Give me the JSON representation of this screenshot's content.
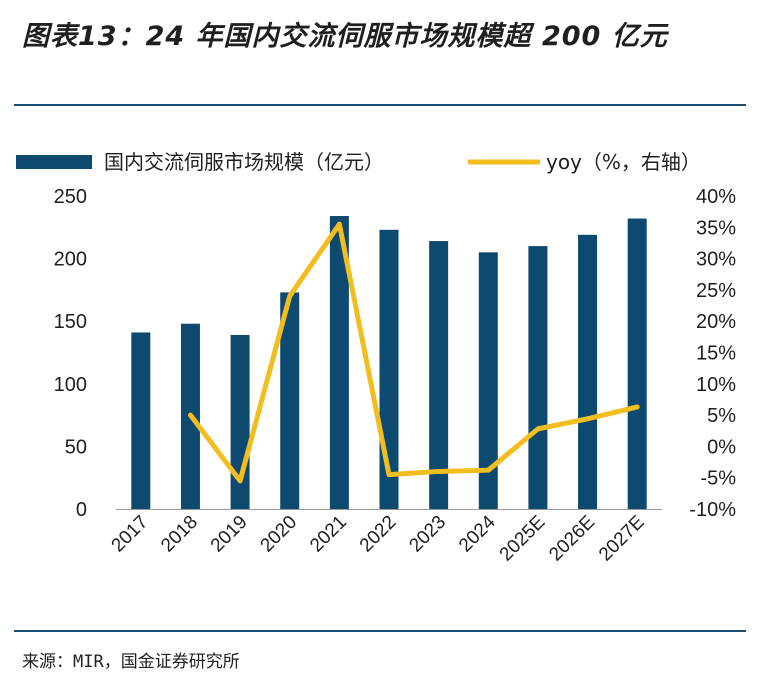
{
  "title": "图表13：24 年国内交流伺服市场规模超 200 亿元",
  "source": "来源：MIR，国金证券研究所",
  "colors": {
    "bar": "#0e4a6f",
    "line": "#f2bd1f",
    "rule": "#1a4f72",
    "text": "#1f1f1f"
  },
  "chart_data": {
    "type": "bar+line",
    "categories": [
      "2017",
      "2018",
      "2019",
      "2020",
      "2021",
      "2022",
      "2023",
      "2024",
      "2025E",
      "2026E",
      "2027E"
    ],
    "series": [
      {
        "name": "国内交流伺服市场规模（亿元）",
        "type": "bar",
        "axis": "left",
        "values": [
          141,
          148,
          139,
          173,
          234,
          223,
          214,
          205,
          210,
          219,
          232
        ]
      },
      {
        "name": "yoy（%，右轴）",
        "type": "line",
        "axis": "right",
        "values": [
          null,
          5.0,
          -5.5,
          24.0,
          35.5,
          -4.5,
          -4.0,
          -3.8,
          2.8,
          4.4,
          6.3
        ]
      }
    ],
    "left_axis": {
      "ticks": [
        0,
        50,
        100,
        150,
        200,
        250
      ],
      "range": [
        0,
        250
      ]
    },
    "right_axis": {
      "ticks": [
        "40%",
        "35%",
        "30%",
        "25%",
        "20%",
        "15%",
        "10%",
        "5%",
        "0%",
        "-5%",
        "-10%"
      ],
      "range": [
        -10,
        40
      ]
    },
    "legend": [
      "国内交流伺服市场规模（亿元）",
      "yoy（%，右轴）"
    ],
    "legend_position": "top"
  }
}
